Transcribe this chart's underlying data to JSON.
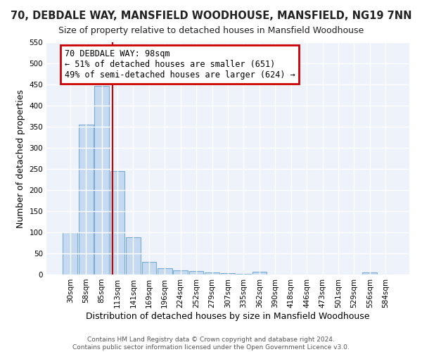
{
  "title": "70, DEBDALE WAY, MANSFIELD WOODHOUSE, MANSFIELD, NG19 7NN",
  "subtitle": "Size of property relative to detached houses in Mansfield Woodhouse",
  "xlabel": "Distribution of detached houses by size in Mansfield Woodhouse",
  "ylabel": "Number of detached properties",
  "categories": [
    "30sqm",
    "58sqm",
    "85sqm",
    "113sqm",
    "141sqm",
    "169sqm",
    "196sqm",
    "224sqm",
    "252sqm",
    "279sqm",
    "307sqm",
    "335sqm",
    "362sqm",
    "390sqm",
    "418sqm",
    "446sqm",
    "473sqm",
    "501sqm",
    "529sqm",
    "556sqm",
    "584sqm"
  ],
  "values": [
    100,
    355,
    447,
    245,
    88,
    30,
    15,
    10,
    8,
    5,
    3,
    2,
    6,
    0,
    0,
    0,
    0,
    0,
    0,
    5,
    0
  ],
  "bar_color": "#c5d9f0",
  "bar_edge_color": "#7aadd4",
  "red_line_x": 2.67,
  "annotation_title": "70 DEBDALE WAY: 98sqm",
  "annotation_line1": "← 51% of detached houses are smaller (651)",
  "annotation_line2": "49% of semi-detached houses are larger (624) →",
  "annotation_box_color": "#cc0000",
  "ylim": [
    0,
    550
  ],
  "yticks": [
    0,
    50,
    100,
    150,
    200,
    250,
    300,
    350,
    400,
    450,
    500,
    550
  ],
  "footer_line1": "Contains HM Land Registry data © Crown copyright and database right 2024.",
  "footer_line2": "Contains public sector information licensed under the Open Government Licence v3.0.",
  "background_color": "#ffffff",
  "plot_bg_color": "#eef2fa",
  "grid_color": "#ffffff",
  "title_fontsize": 10.5,
  "subtitle_fontsize": 9,
  "axis_label_fontsize": 9,
  "tick_fontsize": 7.5,
  "footer_fontsize": 6.5,
  "annotation_fontsize": 8.5
}
